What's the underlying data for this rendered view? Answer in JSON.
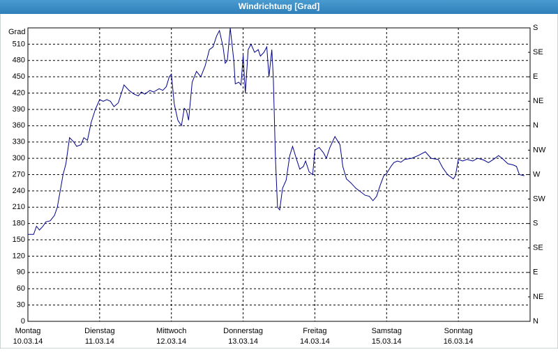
{
  "chart_data": {
    "type": "line",
    "title": "Windrichtung [Grad]",
    "y_label": "Grad",
    "xlim": [
      0,
      7
    ],
    "xticks": [
      {
        "value": 0,
        "label": "Montag"
      },
      {
        "value": 1,
        "label": "Dienstag"
      },
      {
        "value": 2,
        "label": "Mittwoch"
      },
      {
        "value": 3,
        "label": "Donnerstag"
      },
      {
        "value": 4,
        "label": "Freitag"
      },
      {
        "value": 5,
        "label": "Samstag"
      },
      {
        "value": 6,
        "label": "Sonntag"
      }
    ],
    "xtick_dates": [
      "10.03.14",
      "11.03.14",
      "12.03.14",
      "13.03.14",
      "14.03.14",
      "15.03.14",
      "16.03.14"
    ],
    "ylim": [
      0,
      540
    ],
    "yticks": [
      0,
      30,
      60,
      90,
      120,
      150,
      180,
      210,
      240,
      270,
      300,
      330,
      360,
      390,
      420,
      450,
      480,
      510
    ],
    "y2lim": [
      0,
      540
    ],
    "y2ticks": [
      {
        "value": 0,
        "label": "N"
      },
      {
        "value": 45,
        "label": "NE"
      },
      {
        "value": 90,
        "label": "E"
      },
      {
        "value": 135,
        "label": "SE"
      },
      {
        "value": 180,
        "label": "S"
      },
      {
        "value": 225,
        "label": "SW"
      },
      {
        "value": 270,
        "label": "W"
      },
      {
        "value": 315,
        "label": "NW"
      },
      {
        "value": 360,
        "label": "N"
      },
      {
        "value": 405,
        "label": "NE"
      },
      {
        "value": 450,
        "label": "E"
      },
      {
        "value": 495,
        "label": "SE"
      },
      {
        "value": 540,
        "label": "S"
      }
    ],
    "grid": true,
    "series": [
      {
        "color": "#00008b",
        "x": [
          0,
          0.08,
          0.12,
          0.16,
          0.21,
          0.25,
          0.31,
          0.37,
          0.41,
          0.45,
          0.49,
          0.53,
          0.58,
          0.64,
          0.68,
          0.74,
          0.78,
          0.83,
          0.88,
          0.94,
          1.0,
          1.05,
          1.1,
          1.15,
          1.2,
          1.26,
          1.34,
          1.41,
          1.48,
          1.54,
          1.58,
          1.63,
          1.7,
          1.75,
          1.83,
          1.88,
          1.93,
          1.97,
          2.0,
          2.04,
          2.09,
          2.14,
          2.18,
          2.21,
          2.24,
          2.29,
          2.35,
          2.41,
          2.47,
          2.53,
          2.58,
          2.63,
          2.67,
          2.72,
          2.75,
          2.78,
          2.82,
          2.87,
          2.89,
          2.94,
          2.97,
          3.0,
          3.03,
          3.07,
          3.11,
          3.16,
          3.21,
          3.24,
          3.29,
          3.33,
          3.36,
          3.4,
          3.42,
          3.45,
          3.48,
          3.51,
          3.55,
          3.6,
          3.65,
          3.69,
          3.74,
          3.79,
          3.84,
          3.87,
          3.92,
          3.97,
          4.0,
          4.06,
          4.12,
          4.16,
          4.21,
          4.28,
          4.35,
          4.39,
          4.44,
          4.5,
          4.57,
          4.64,
          4.7,
          4.76,
          4.81,
          4.86,
          4.91,
          4.96,
          5.0,
          5.06,
          5.1,
          5.15,
          5.2,
          5.25,
          5.35,
          5.44,
          5.54,
          5.62,
          5.72,
          5.78,
          5.85,
          5.93,
          5.96,
          6.0,
          6.06,
          6.12,
          6.2,
          6.27,
          6.35,
          6.42,
          6.49,
          6.56,
          6.61,
          6.69,
          6.76,
          6.81,
          6.85,
          6.92
        ],
        "values": [
          160,
          160,
          175,
          168,
          175,
          183,
          185,
          195,
          210,
          240,
          270,
          290,
          338,
          330,
          322,
          325,
          338,
          333,
          365,
          390,
          408,
          405,
          408,
          405,
          395,
          402,
          435,
          425,
          418,
          415,
          422,
          418,
          425,
          422,
          428,
          425,
          432,
          450,
          455,
          400,
          370,
          360,
          392,
          388,
          370,
          440,
          460,
          450,
          470,
          500,
          505,
          525,
          535,
          505,
          475,
          480,
          540,
          480,
          437,
          440,
          435,
          490,
          420,
          500,
          510,
          495,
          500,
          488,
          495,
          505,
          450,
          500,
          450,
          300,
          210,
          205,
          245,
          260,
          305,
          322,
          300,
          280,
          285,
          295,
          275,
          270,
          315,
          320,
          310,
          300,
          320,
          340,
          325,
          285,
          262,
          255,
          245,
          238,
          232,
          230,
          222,
          230,
          250,
          268,
          272,
          285,
          292,
          295,
          293,
          298,
          300,
          305,
          312,
          300,
          298,
          283,
          270,
          262,
          268,
          298,
          295,
          298,
          295,
          300,
          297,
          292,
          298,
          305,
          300,
          290,
          288,
          285,
          270,
          268
        ]
      }
    ]
  }
}
